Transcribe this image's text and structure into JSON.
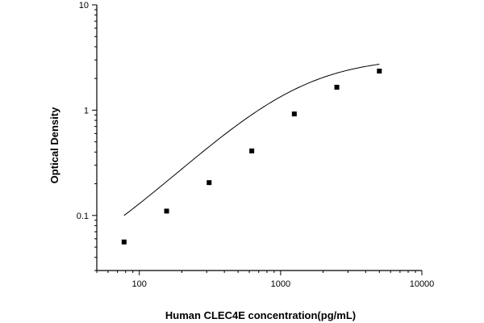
{
  "chart_data": {
    "type": "scatter",
    "xlabel": "Human CLEC4E concentration(pg/mL)",
    "ylabel": "Optical Density",
    "xscale": "log",
    "yscale": "log",
    "xlim": [
      50,
      10000
    ],
    "ylim": [
      0.03,
      10
    ],
    "x_ticks": [
      100,
      1000,
      10000
    ],
    "x_tick_labels": [
      "100",
      "1000",
      "10000"
    ],
    "y_ticks": [
      0.1,
      1,
      10
    ],
    "y_tick_labels": [
      "0.1",
      "1",
      "10"
    ],
    "grid": false,
    "legend": "none",
    "colors": {
      "marker": "#000000",
      "curve": "#000000",
      "axis": "#000000"
    },
    "series": [
      {
        "values": [
          {
            "x": 78,
            "y": 0.056
          },
          {
            "x": 156,
            "y": 0.11
          },
          {
            "x": 312,
            "y": 0.205
          },
          {
            "x": 625,
            "y": 0.41
          },
          {
            "x": 1250,
            "y": 0.92
          },
          {
            "x": 2500,
            "y": 1.65
          },
          {
            "x": 5000,
            "y": 2.35
          }
        ]
      }
    ],
    "fit_curve": {
      "model": "4PL",
      "bottom": 0.02,
      "top": 3.2,
      "ec50": 1300,
      "hill": 1.3,
      "x_range": [
        78,
        5000
      ]
    }
  }
}
